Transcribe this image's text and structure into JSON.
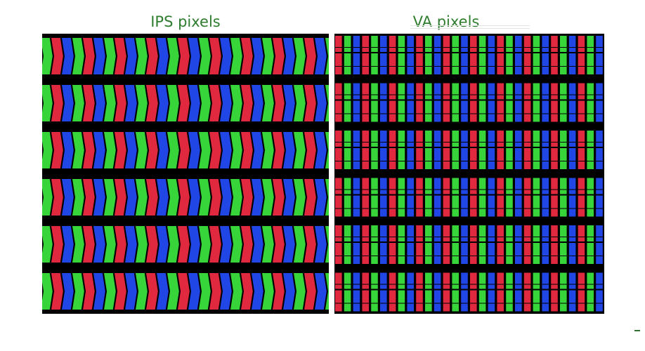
{
  "titles": {
    "ips": "IPS pixels",
    "va": "VA pixels"
  },
  "colors": {
    "title_text": "#2f7d2f",
    "background": "#ffffff",
    "grid_gap": "#000000",
    "subpixel_red": "#e0293f",
    "subpixel_green": "#37d43a",
    "subpixel_blue": "#2146e6"
  },
  "panels": {
    "ips": {
      "label": "IPS pixels",
      "subpixel_order": [
        "green",
        "red",
        "blue"
      ],
      "row_count": 6,
      "subpixel_shape": "chevron"
    },
    "va": {
      "label": "VA pixels",
      "subpixel_order": [
        "red",
        "green",
        "blue"
      ],
      "row_count": 6,
      "subpixel_shape": "split-domain"
    }
  }
}
